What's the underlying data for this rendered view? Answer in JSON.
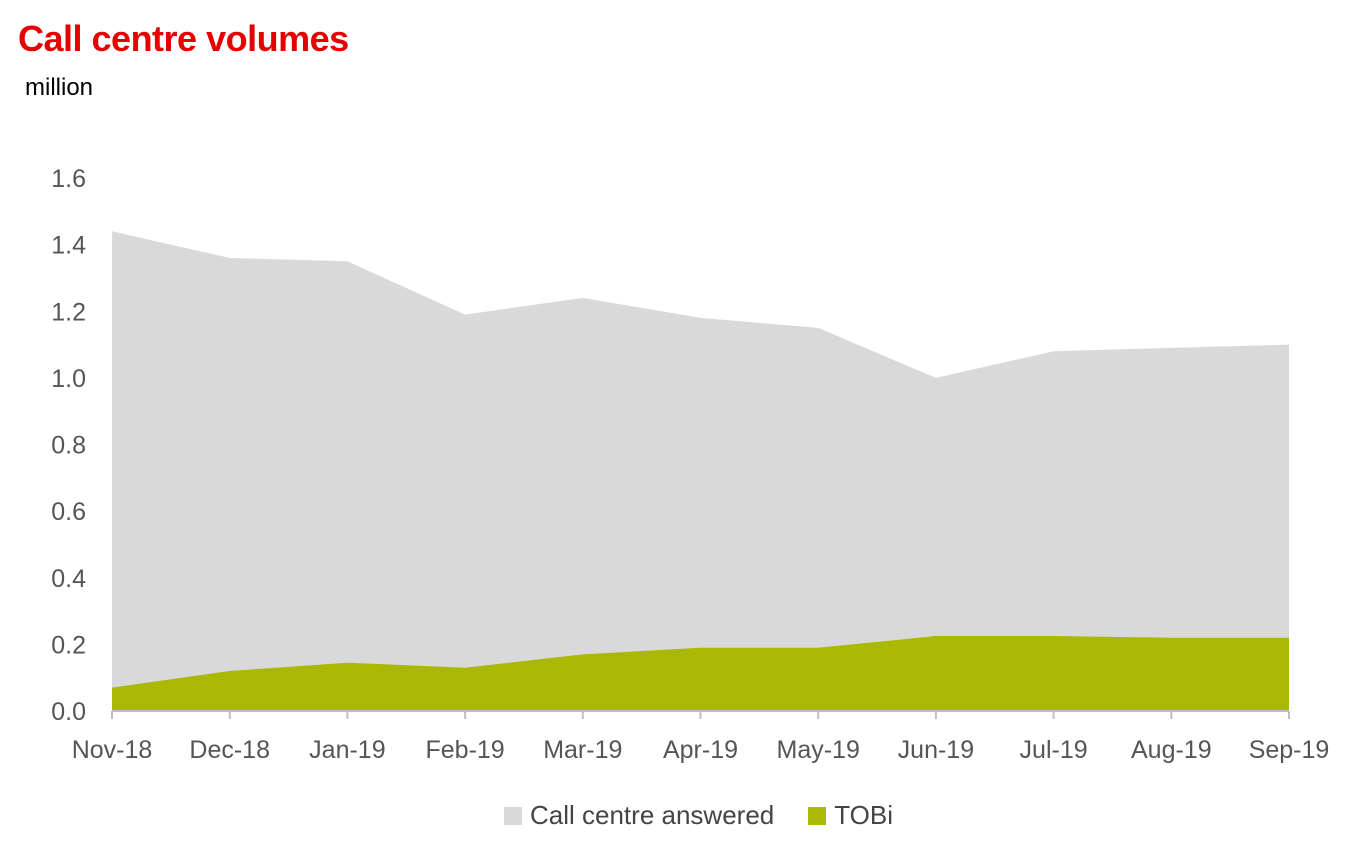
{
  "title": "Call centre volumes",
  "subtitle": "million",
  "colors": {
    "title": "#e60000",
    "answered": "#d9d9d9",
    "tobi": "#a9b800",
    "axis": "#bfbfbf",
    "tick_text": "#555555"
  },
  "legend": [
    {
      "label": "Call centre answered",
      "color": "#d9d9d9"
    },
    {
      "label": "TOBi",
      "color": "#a9b800"
    }
  ],
  "chart_data": {
    "type": "area",
    "title": "Call centre volumes",
    "ylabel": "million",
    "ylim": [
      0,
      1.6
    ],
    "yticks": [
      "0.0",
      "0.2",
      "0.4",
      "0.6",
      "0.8",
      "1.0",
      "1.2",
      "1.4",
      "1.6"
    ],
    "grid": false,
    "legend_position": "bottom",
    "categories": [
      "Nov-18",
      "Dec-18",
      "Jan-19",
      "Feb-19",
      "Mar-19",
      "Apr-19",
      "May-19",
      "Jun-19",
      "Jul-19",
      "Aug-19",
      "Sep-19"
    ],
    "series": [
      {
        "name": "Call centre answered",
        "values": [
          1.44,
          1.36,
          1.35,
          1.19,
          1.24,
          1.18,
          1.15,
          1.0,
          1.08,
          1.09,
          1.1
        ]
      },
      {
        "name": "TOBi",
        "values": [
          0.07,
          0.12,
          0.145,
          0.13,
          0.17,
          0.19,
          0.19,
          0.225,
          0.225,
          0.22,
          0.22
        ]
      }
    ]
  }
}
